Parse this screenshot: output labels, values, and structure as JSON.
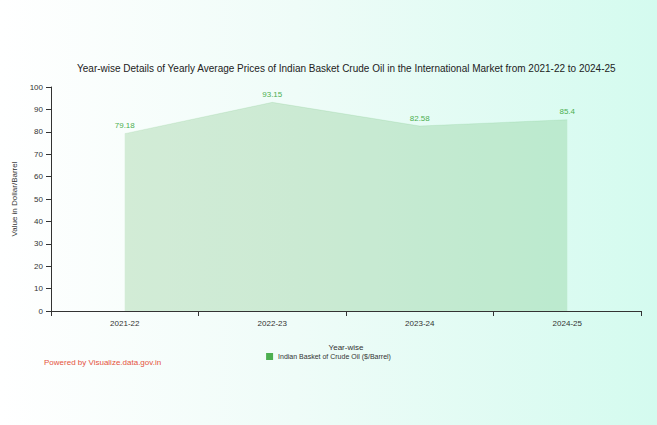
{
  "chart_data": {
    "type": "line",
    "title": "Year-wise Details of Yearly Average Prices of Indian Basket Crude Oil in the International Market from 2021-22 to 2024-25",
    "x_label": "Year-wise",
    "y_label": "Value in Dollar/Barrel",
    "categories": [
      "2021-22",
      "2022-23",
      "2023-24",
      "2024-25"
    ],
    "series": [
      {
        "name": "Indian Basket of Crude Oil ($/Barrel)",
        "color": "#4caf50",
        "values": [
          79.18,
          93.15,
          82.58,
          85.4
        ]
      }
    ],
    "ylim": [
      0,
      100
    ],
    "yticks": [
      0,
      10,
      20,
      30,
      40,
      50,
      60,
      70,
      80,
      90,
      100
    ],
    "grid": false,
    "legend": "bottom",
    "data_labels": true,
    "annotations": [
      "Powered by Visualize.data.gov.in"
    ]
  }
}
